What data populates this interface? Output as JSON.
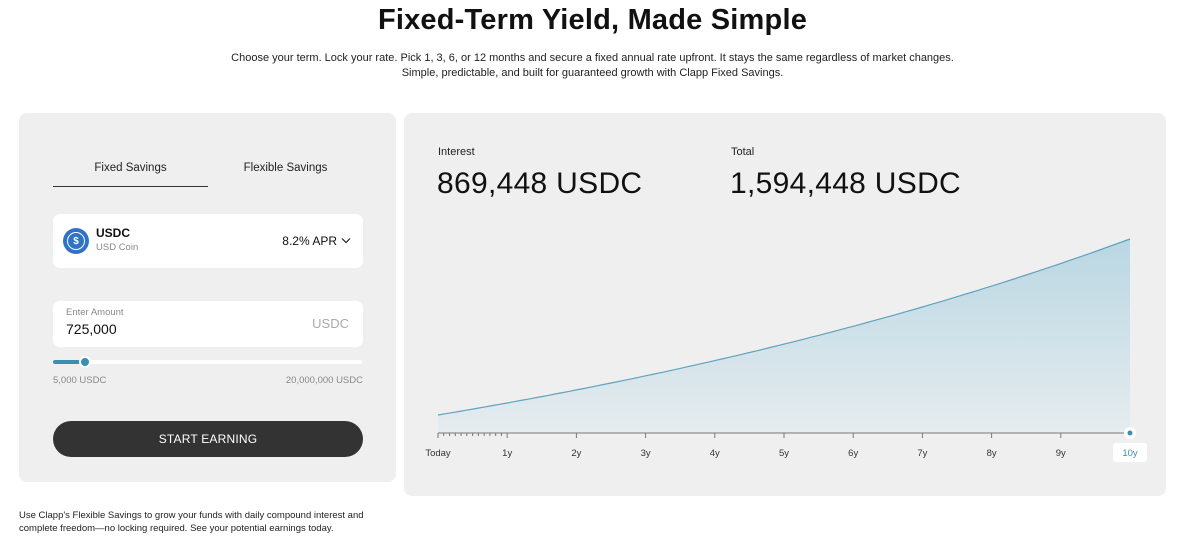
{
  "header": {
    "title": "Fixed-Term Yield, Made Simple",
    "subtitle": "Choose your term. Lock your rate. Pick 1, 3, 6, or 12 months and secure a fixed annual rate upfront. It stays the same regardless of market changes. Simple, predictable, and built for guaranteed growth with Clapp Fixed Savings."
  },
  "calculator": {
    "tabs": [
      {
        "label": "Fixed Savings",
        "active": true
      },
      {
        "label": "Flexible Savings",
        "active": false
      }
    ],
    "asset": {
      "symbol": "USDC",
      "name": "USD Coin",
      "icon": "usdc-coin-icon",
      "rate": "8.2% APR"
    },
    "amount": {
      "label": "Enter Amount",
      "value": "725,000",
      "currency": "USDC"
    },
    "slider": {
      "min_label": "5,000 USDC",
      "max_label": "20,000,000 USDC",
      "min": 5000,
      "max": 20000000,
      "value": 725000
    },
    "button": "START EARNING"
  },
  "footer": "Use Clapp's Flexible Savings to grow your funds with daily compound interest and complete freedom—no locking required. See your potential earnings today.",
  "results": {
    "interest_label": "Interest",
    "interest_value": "869,448 USDC",
    "total_label": "Total",
    "total_value": "1,594,448 USDC"
  },
  "colors": {
    "accent": "#3a8fb0",
    "button": "#333333",
    "card": "#efefef",
    "area": "#c4dde7"
  },
  "chart_data": {
    "type": "area",
    "x": [
      0,
      1,
      2,
      3,
      4,
      5,
      6,
      7,
      8,
      9,
      10
    ],
    "tick_labels": [
      "Today",
      "1y",
      "2y",
      "3y",
      "4y",
      "5y",
      "6y",
      "7y",
      "8y",
      "9y",
      "10y"
    ],
    "selected": "10y",
    "values": [
      725000,
      784450,
      848775,
      918374,
      993681,
      1075163,
      1163326,
      1258719,
      1361934,
      1473612,
      1594448
    ],
    "ylim": [
      636000,
      1594448
    ],
    "grid": false
  }
}
